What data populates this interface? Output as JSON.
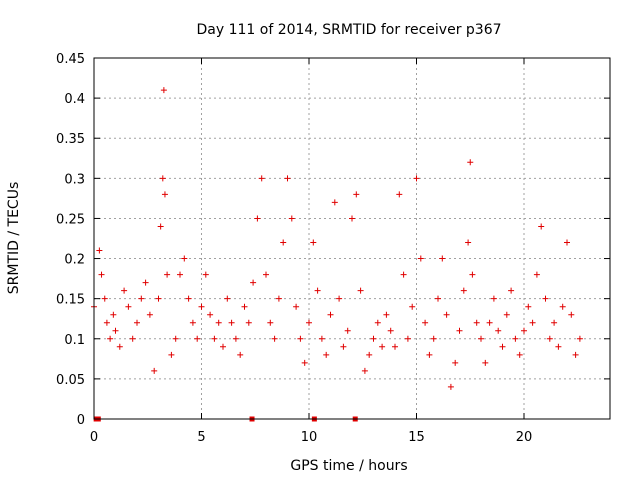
{
  "chart_data": {
    "type": "scatter",
    "title": "Day 111 of 2014, SRMTID for receiver p367",
    "xlabel": "GPS time / hours",
    "ylabel": "SRMTID / TECUs",
    "xlim": [
      0,
      24
    ],
    "ylim": [
      0,
      0.45
    ],
    "xticks": [
      0,
      5,
      10,
      15,
      20
    ],
    "yticks": [
      0,
      0.05,
      0.1,
      0.15,
      0.2,
      0.25,
      0.3,
      0.35,
      0.4,
      0.45
    ],
    "xtick_labels": [
      "0",
      "5",
      "10",
      "15",
      "20"
    ],
    "ytick_labels": [
      "0",
      "0.05",
      "0.1",
      "0.15",
      "0.2",
      "0.25",
      "0.3",
      "0.35",
      "0.4",
      "0.45"
    ],
    "grid": true,
    "marker": "+",
    "color": "#e00000",
    "series": [
      {
        "name": "SRMTID",
        "x": [
          0.0,
          0.25,
          0.35,
          0.5,
          0.6,
          0.75,
          0.9,
          1.0,
          1.2,
          1.4,
          1.6,
          1.8,
          2.0,
          2.2,
          2.4,
          2.6,
          2.8,
          3.0,
          3.1,
          3.2,
          3.25,
          3.3,
          3.4,
          3.6,
          3.8,
          4.0,
          4.2,
          4.4,
          4.6,
          4.8,
          5.0,
          5.2,
          5.4,
          5.6,
          5.8,
          6.0,
          6.2,
          6.4,
          6.6,
          6.8,
          7.0,
          7.2,
          7.4,
          7.6,
          7.8,
          8.0,
          8.2,
          8.4,
          8.6,
          8.8,
          9.0,
          9.2,
          9.4,
          9.6,
          9.8,
          10.0,
          10.2,
          10.4,
          10.6,
          10.8,
          11.0,
          11.2,
          11.4,
          11.6,
          11.8,
          12.0,
          12.2,
          12.4,
          12.6,
          12.8,
          13.0,
          13.2,
          13.4,
          13.6,
          13.8,
          14.0,
          14.2,
          14.4,
          14.6,
          14.8,
          15.0,
          15.2,
          15.4,
          15.6,
          15.8,
          16.0,
          16.2,
          16.4,
          16.6,
          16.8,
          17.0,
          17.2,
          17.4,
          17.5,
          17.6,
          17.8,
          18.0,
          18.2,
          18.4,
          18.6,
          18.8,
          19.0,
          19.2,
          19.4,
          19.6,
          19.8,
          20.0,
          20.2,
          20.4,
          20.6,
          20.8,
          21.0,
          21.2,
          21.4,
          21.6,
          21.8,
          22.0,
          22.2,
          22.4,
          22.6
        ],
        "y": [
          0.14,
          0.21,
          0.18,
          0.15,
          0.12,
          0.1,
          0.13,
          0.11,
          0.09,
          0.16,
          0.14,
          0.1,
          0.12,
          0.15,
          0.17,
          0.13,
          0.06,
          0.15,
          0.24,
          0.3,
          0.41,
          0.28,
          0.18,
          0.08,
          0.1,
          0.18,
          0.2,
          0.15,
          0.12,
          0.1,
          0.14,
          0.18,
          0.13,
          0.1,
          0.12,
          0.09,
          0.15,
          0.12,
          0.1,
          0.08,
          0.14,
          0.12,
          0.17,
          0.25,
          0.3,
          0.18,
          0.12,
          0.1,
          0.15,
          0.22,
          0.3,
          0.25,
          0.14,
          0.1,
          0.07,
          0.12,
          0.22,
          0.16,
          0.1,
          0.08,
          0.13,
          0.27,
          0.15,
          0.09,
          0.11,
          0.25,
          0.28,
          0.16,
          0.06,
          0.08,
          0.1,
          0.12,
          0.09,
          0.13,
          0.11,
          0.09,
          0.28,
          0.18,
          0.1,
          0.14,
          0.3,
          0.2,
          0.12,
          0.08,
          0.1,
          0.15,
          0.2,
          0.13,
          0.04,
          0.07,
          0.11,
          0.16,
          0.22,
          0.32,
          0.18,
          0.12,
          0.1,
          0.07,
          0.12,
          0.15,
          0.11,
          0.09,
          0.13,
          0.16,
          0.1,
          0.08,
          0.11,
          0.14,
          0.12,
          0.18,
          0.24,
          0.15,
          0.1,
          0.12,
          0.09,
          0.14,
          0.22,
          0.13,
          0.08,
          0.1
        ],
        "gap_markers_x": [
          0.1,
          0.2,
          7.35,
          10.25,
          12.15
        ]
      }
    ]
  }
}
